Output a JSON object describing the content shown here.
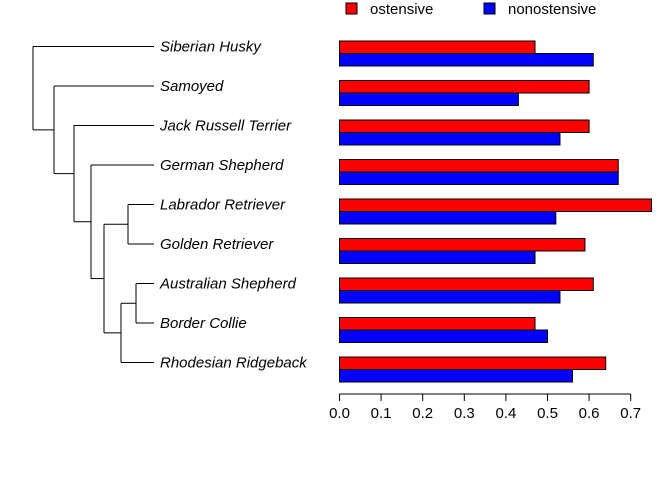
{
  "chart_data": {
    "type": "bar",
    "orientation": "horizontal",
    "categories": [
      "Siberian Husky",
      "Samoyed",
      "Jack Russell Terrier",
      "German Shepherd",
      "Labrador Retriever",
      "Golden Retriever",
      "Australian Shepherd",
      "Border Collie",
      "Rhodesian Ridgeback"
    ],
    "series": [
      {
        "name": "ostensive",
        "color": "#ff0000",
        "values": [
          0.47,
          0.6,
          0.6,
          0.67,
          0.75,
          0.59,
          0.61,
          0.47,
          0.64
        ]
      },
      {
        "name": "nonostensive",
        "color": "#0000ff",
        "values": [
          0.61,
          0.43,
          0.53,
          0.67,
          0.52,
          0.47,
          0.53,
          0.5,
          0.56
        ]
      }
    ],
    "xlim": [
      0,
      0.75
    ],
    "x_ticks": [
      "0.0",
      "0.1",
      "0.2",
      "0.3",
      "0.4",
      "0.5",
      "0.6",
      "0.7"
    ],
    "legend": {
      "placement": "top",
      "entries": [
        "ostensive",
        "nonostensive"
      ]
    },
    "grid": false,
    "tree": {
      "description_of_topology": "(Siberian Husky, (Samoyed, (Jack Russell Terrier, (German Shepherd, ((Labrador Retriever, Golden Retriever), ((Australian Shepherd, Border Collie), Rhodesian Ridgeback))))))"
    }
  }
}
